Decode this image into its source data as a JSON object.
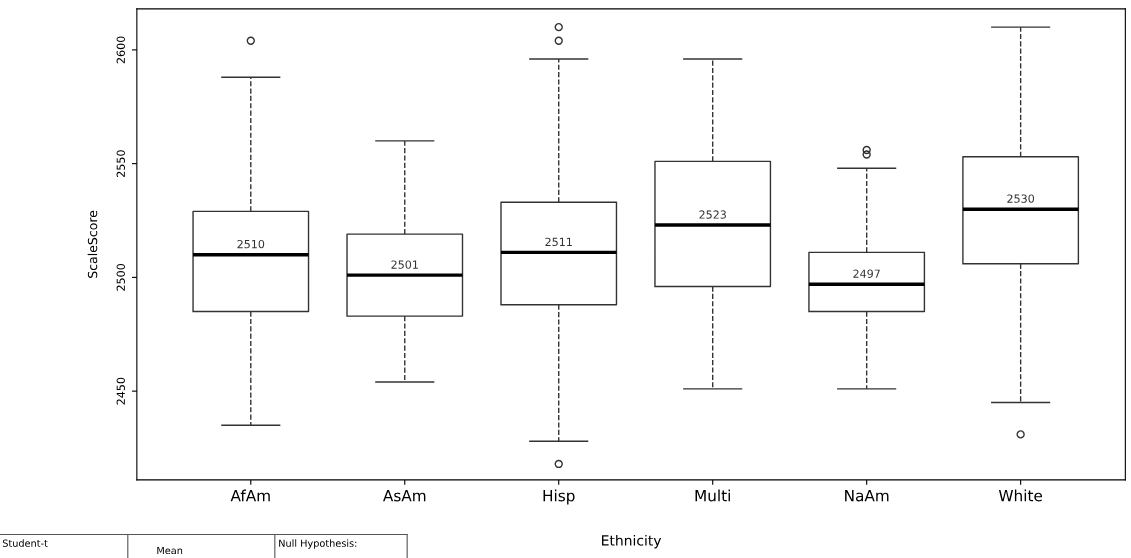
{
  "chart_data": {
    "type": "box",
    "xlabel": "Ethnicity",
    "ylabel": "ScaleScore",
    "categories": [
      "AfAm",
      "AsAm",
      "Hisp",
      "Multi",
      "NaAm",
      "White"
    ],
    "boxes": [
      {
        "low": 2435,
        "q1": 2485,
        "median": 2510,
        "q3": 2529,
        "high": 2588,
        "outliers": [
          2604
        ]
      },
      {
        "low": 2454,
        "q1": 2483,
        "median": 2501,
        "q3": 2519,
        "high": 2560
      },
      {
        "low": 2428,
        "q1": 2488,
        "median": 2511,
        "q3": 2533,
        "high": 2596,
        "outliers": [
          2610,
          2604,
          2418
        ]
      },
      {
        "low": 2451,
        "q1": 2496,
        "median": 2523,
        "q3": 2551,
        "high": 2596
      },
      {
        "low": 2451,
        "q1": 2485,
        "median": 2497,
        "q3": 2511,
        "high": 2548,
        "outliers": [
          2556,
          2554
        ]
      },
      {
        "low": 2445,
        "q1": 2506,
        "median": 2530,
        "q3": 2553,
        "high": 2610,
        "outliers": [
          2431
        ]
      }
    ],
    "value_labels": [
      "2510",
      "2501",
      "2511",
      "2523",
      "2497",
      "2530"
    ],
    "ylim": [
      2411,
      2618
    ],
    "yticks": [
      2450,
      2500,
      2550,
      2600
    ],
    "grid": false,
    "line_style": "dashed",
    "annotations": [
      "Student-t",
      "Mean",
      "Null Hypothesis:"
    ]
  }
}
